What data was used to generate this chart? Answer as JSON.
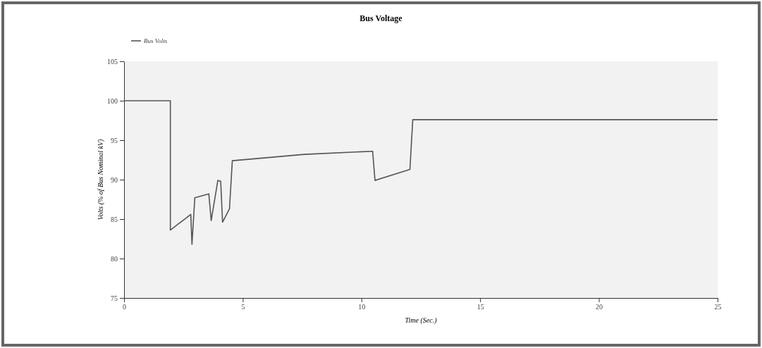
{
  "chart_data": {
    "type": "line",
    "title": "Bus Voltage",
    "xlabel": "Time (Sec.)",
    "ylabel": "Volts (% of Bus Nominal kV)",
    "x": [
      0,
      1.95,
      1.95,
      2.81,
      2.86,
      2.98,
      3.57,
      3.67,
      3.95,
      4.07,
      4.15,
      4.44,
      4.56,
      7.6,
      10.47,
      10.57,
      12.04,
      12.16,
      25
    ],
    "series": [
      {
        "name": "Bus Volts",
        "color": "#555555",
        "values": [
          100,
          100,
          83.6,
          85.6,
          81.8,
          87.7,
          88.2,
          84.8,
          89.9,
          89.8,
          84.6,
          86.3,
          92.4,
          93.2,
          93.6,
          89.9,
          91.3,
          97.6,
          97.6
        ]
      }
    ],
    "xlim": [
      0,
      25
    ],
    "xticks": [
      0,
      5,
      10,
      15,
      20,
      25
    ],
    "ylim": [
      75,
      105
    ],
    "yticks": [
      75,
      80,
      85,
      90,
      95,
      100,
      105
    ],
    "grid": false,
    "legend": "top left",
    "marker": "none",
    "line_style": "solid"
  }
}
